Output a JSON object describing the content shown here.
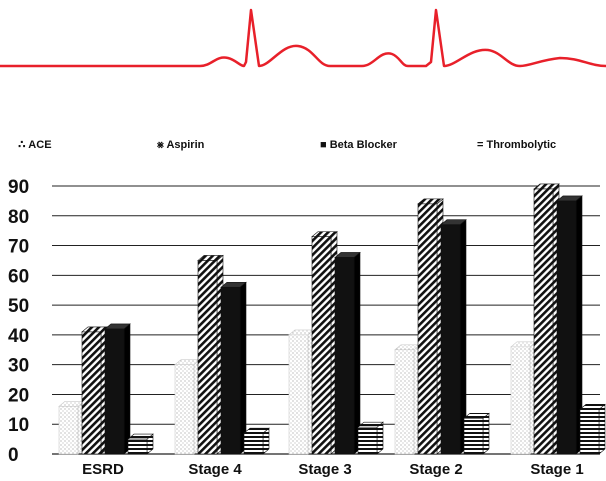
{
  "chart_data": {
    "type": "bar",
    "categories": [
      "ESRD",
      "Stage 4",
      "Stage 3",
      "Stage 2",
      "Stage 1"
    ],
    "series": [
      {
        "name": "ACE",
        "symbol": "∴",
        "pattern": "dots",
        "values": [
          16,
          30,
          40,
          35,
          36
        ]
      },
      {
        "name": "Aspirin",
        "symbol": "⨳",
        "pattern": "diagonal",
        "values": [
          41,
          65,
          73,
          84,
          89
        ]
      },
      {
        "name": "Beta Blocker",
        "symbol": "■",
        "pattern": "solid",
        "values": [
          42,
          56,
          66,
          77,
          85
        ]
      },
      {
        "name": "Thrombolytic",
        "symbol": "=",
        "pattern": "horizontal",
        "values": [
          5,
          7,
          9,
          12,
          15
        ]
      }
    ],
    "yticks": [
      "0",
      "10",
      "20",
      "30",
      "40",
      "50",
      "60",
      "70",
      "80",
      "90"
    ],
    "ylim": [
      0,
      90
    ],
    "grid": true,
    "legend": "top",
    "style": "3d",
    "decoration": "ecg-trace",
    "colors": {
      "ecg": "#e8202a",
      "bar_dark": "#111111",
      "bar_light": "#ffffff",
      "grid": "#222222"
    }
  }
}
